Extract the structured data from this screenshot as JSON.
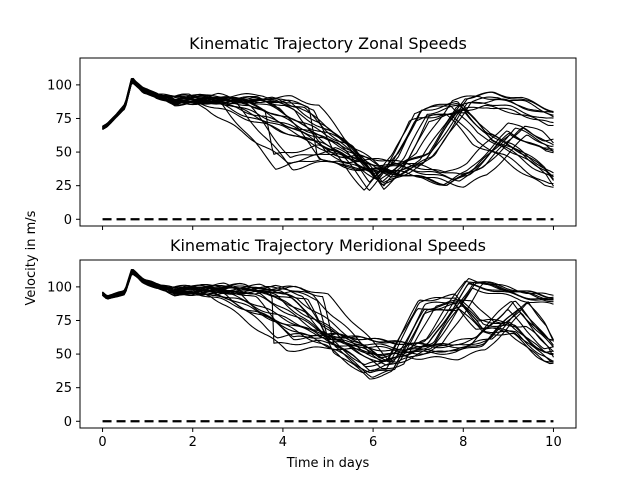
{
  "figure": {
    "ylabel": "Velocity in m/s",
    "xlabel": "Time in days"
  },
  "chart_data": [
    {
      "type": "line",
      "title": "Kinematic Trajectory Zonal Speeds",
      "xlabel": "",
      "ylabel": "Velocity in m/s",
      "xlim": [
        -0.5,
        10.5
      ],
      "ylim": [
        -5,
        120
      ],
      "xticks": [
        0,
        2,
        4,
        6,
        8,
        10
      ],
      "xtick_labels_shown": false,
      "yticks": [
        0,
        25,
        50,
        75,
        100
      ],
      "ytick_labels": [
        "0",
        "25",
        "50",
        "75",
        "100"
      ],
      "grid": false,
      "legend": "none",
      "line_color": "#000000",
      "ensemble": {
        "members": 24,
        "start": [
          [
            0,
            68
          ],
          [
            0.1,
            70
          ],
          [
            0.5,
            84
          ],
          [
            0.65,
            104
          ],
          [
            0.9,
            96
          ],
          [
            1.2,
            92
          ],
          [
            1.6,
            88
          ]
        ],
        "low_path": [
          [
            4.0,
            43
          ],
          [
            5.0,
            50
          ],
          [
            5.5,
            43
          ],
          [
            6.5,
            40
          ],
          [
            7.2,
            35
          ],
          [
            7.8,
            30
          ],
          [
            8.3,
            38
          ],
          [
            9.2,
            68
          ],
          [
            9.6,
            62
          ],
          [
            10,
            55
          ]
        ],
        "mid_path": [
          [
            5.3,
            56
          ],
          [
            6.0,
            27
          ],
          [
            6.5,
            45
          ],
          [
            7.0,
            78
          ],
          [
            7.8,
            84
          ],
          [
            8.4,
            62
          ],
          [
            9.0,
            52
          ],
          [
            9.6,
            38
          ],
          [
            10,
            30
          ]
        ],
        "high_path": [
          [
            6.3,
            30
          ],
          [
            7.2,
            45
          ],
          [
            8.0,
            85
          ],
          [
            8.6,
            88
          ],
          [
            9.2,
            84
          ],
          [
            10,
            75
          ]
        ],
        "descent_day_range": [
          2.3,
          4.8
        ]
      },
      "reference_line": {
        "x": [
          0,
          10
        ],
        "y": [
          0,
          0
        ],
        "style": "dashed"
      }
    },
    {
      "type": "line",
      "title": "Kinematic Trajectory Meridional Speeds",
      "xlabel": "Time in days",
      "ylabel": "Velocity in m/s",
      "xlim": [
        -0.5,
        10.5
      ],
      "ylim": [
        -5,
        120
      ],
      "xticks": [
        0,
        2,
        4,
        6,
        8,
        10
      ],
      "xtick_labels": [
        "0",
        "2",
        "4",
        "6",
        "8",
        "10"
      ],
      "yticks": [
        0,
        25,
        50,
        75,
        100
      ],
      "ytick_labels": [
        "0",
        "25",
        "50",
        "75",
        "100"
      ],
      "grid": false,
      "legend": "none",
      "line_color": "#000000",
      "ensemble": {
        "members": 24,
        "start": [
          [
            0,
            95
          ],
          [
            0.1,
            92
          ],
          [
            0.5,
            96
          ],
          [
            0.65,
            112
          ],
          [
            0.9,
            104
          ],
          [
            1.2,
            101
          ],
          [
            1.6,
            97
          ]
        ],
        "low_path": [
          [
            4.0,
            58
          ],
          [
            5.0,
            60
          ],
          [
            6.0,
            56
          ],
          [
            7.0,
            52
          ],
          [
            7.8,
            52
          ],
          [
            8.4,
            58
          ],
          [
            9.2,
            85
          ],
          [
            9.6,
            68
          ],
          [
            10,
            56
          ]
        ],
        "mid_path": [
          [
            5.2,
            58
          ],
          [
            6.0,
            38
          ],
          [
            6.5,
            42
          ],
          [
            7.2,
            86
          ],
          [
            8.0,
            90
          ],
          [
            8.5,
            72
          ],
          [
            9.2,
            70
          ],
          [
            9.7,
            55
          ],
          [
            10,
            48
          ]
        ],
        "high_path": [
          [
            6.3,
            42
          ],
          [
            7.3,
            55
          ],
          [
            8.2,
            100
          ],
          [
            8.7,
            97
          ],
          [
            9.3,
            92
          ],
          [
            10,
            88
          ]
        ],
        "descent_day_range": [
          2.4,
          5.0
        ]
      },
      "reference_line": {
        "x": [
          0,
          10
        ],
        "y": [
          0,
          0
        ],
        "style": "dashed"
      }
    }
  ]
}
